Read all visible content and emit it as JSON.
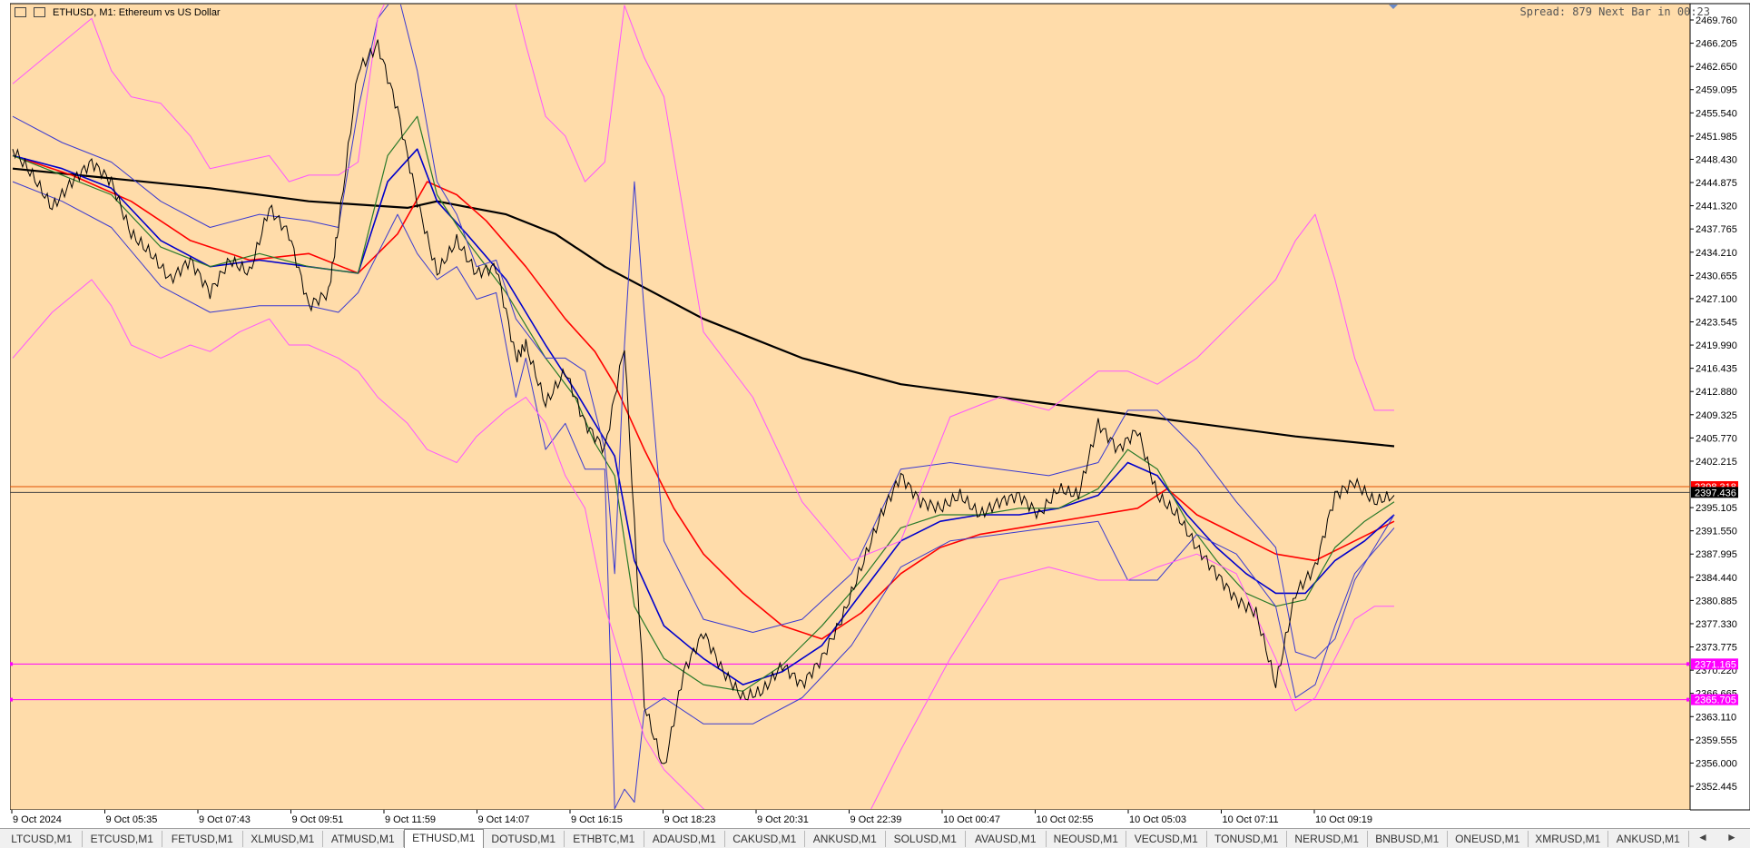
{
  "window": {
    "title": "ETHUSD, M1:  Ethereum vs US Dollar",
    "spread_text": "Spread: 879 Next Bar in 00:23"
  },
  "tabs": [
    {
      "label": "LTCUSD,M1",
      "active": false
    },
    {
      "label": "ETCUSD,M1",
      "active": false
    },
    {
      "label": "FETUSD,M1",
      "active": false
    },
    {
      "label": "XLMUSD,M1",
      "active": false
    },
    {
      "label": "ATMUSD,M1",
      "active": false
    },
    {
      "label": "ETHUSD,M1",
      "active": true
    },
    {
      "label": "DOTUSD,M1",
      "active": false
    },
    {
      "label": "ETHBTC,M1",
      "active": false
    },
    {
      "label": "ADAUSD,M1",
      "active": false
    },
    {
      "label": "CAKUSD,M1",
      "active": false
    },
    {
      "label": "ANKUSD,M1",
      "active": false
    },
    {
      "label": "SOLUSD,M1",
      "active": false
    },
    {
      "label": "AVAUSD,M1",
      "active": false
    },
    {
      "label": "NEOUSD,M1",
      "active": false
    },
    {
      "label": "VECUSD,M1",
      "active": false
    },
    {
      "label": "TONUSD,M1",
      "active": false
    },
    {
      "label": "NERUSD,M1",
      "active": false
    },
    {
      "label": "BNBUSD,M1",
      "active": false
    },
    {
      "label": "ONEUSD,M1",
      "active": false
    },
    {
      "label": "XMRUSD,M1",
      "active": false
    },
    {
      "label": "ANKUSD,M1",
      "active": false
    }
  ],
  "tab_arrows": {
    "left": "◄",
    "right": "►"
  },
  "chart_data": {
    "type": "line",
    "symbol": "ETHUSD",
    "timeframe": "M1",
    "background_color": "#ffdcaa",
    "ylim": [
      2350.0,
      2470.0
    ],
    "y_ticks": [
      "2469.760",
      "2466.205",
      "2462.650",
      "2459.095",
      "2455.540",
      "2451.985",
      "2448.430",
      "2444.875",
      "2441.320",
      "2437.765",
      "2434.210",
      "2430.655",
      "2427.100",
      "2423.545",
      "2419.990",
      "2416.435",
      "2412.880",
      "2409.325",
      "2405.770",
      "2402.215",
      "2395.105",
      "2391.550",
      "2387.995",
      "2384.440",
      "2380.885",
      "2377.330",
      "2373.775",
      "2370.220",
      "2366.665",
      "2363.110",
      "2359.555",
      "2356.000",
      "2352.445"
    ],
    "x_ticks": [
      "9 Oct 2024",
      "9 Oct 05:35",
      "9 Oct 07:43",
      "9 Oct 09:51",
      "9 Oct 11:59",
      "9 Oct 14:07",
      "9 Oct 16:15",
      "9 Oct 18:23",
      "9 Oct 20:31",
      "9 Oct 22:39",
      "10 Oct 00:47",
      "10 Oct 02:55",
      "10 Oct 05:03",
      "10 Oct 07:11",
      "10 Oct 09:19"
    ],
    "price_labels": [
      {
        "value": "2398.318",
        "price": 2398.318,
        "bg": "#ff0000",
        "fg": "#ffffff"
      },
      {
        "value": "2397.436",
        "price": 2397.436,
        "bg": "#000000",
        "fg": "#ffffff"
      },
      {
        "value": "2371.165",
        "price": 2371.165,
        "bg": "#ff00ff",
        "fg": "#ffffff"
      },
      {
        "value": "2365.705",
        "price": 2365.705,
        "bg": "#ff00ff",
        "fg": "#ffffff"
      }
    ],
    "hlines": [
      {
        "price": 2398.318,
        "color": "#e05000"
      },
      {
        "price": 2397.436,
        "color": "#444444"
      },
      {
        "price": 2371.165,
        "color": "#ff00ff"
      },
      {
        "price": 2365.705,
        "color": "#ff00ff"
      }
    ],
    "price_series": {
      "name": "",
      "color": "#000000",
      "x": [
        0,
        4,
        8,
        12,
        16,
        20,
        24,
        28,
        32,
        36,
        40,
        44,
        48,
        52,
        56,
        60,
        64,
        66,
        70,
        74,
        78,
        82,
        86,
        90,
        94,
        98,
        102,
        104,
        108,
        112,
        116,
        120,
        124,
        128,
        132,
        136,
        140,
        144,
        148,
        152,
        156,
        160,
        164,
        168,
        172,
        176,
        180,
        184,
        188,
        192,
        196,
        200,
        204,
        208,
        212,
        216,
        220,
        224,
        228,
        232,
        236,
        240,
        244,
        248,
        252,
        256,
        260,
        264,
        268,
        272,
        276,
        280
      ],
      "values": [
        2450,
        2446,
        2441,
        2445,
        2448,
        2445,
        2437,
        2434,
        2430,
        2433,
        2428,
        2433,
        2431,
        2441,
        2437,
        2426,
        2428,
        2438,
        2462,
        2466,
        2456,
        2442,
        2431,
        2436,
        2431,
        2432,
        2418,
        2420,
        2411,
        2416,
        2408,
        2404,
        2420,
        2365,
        2355,
        2370,
        2376,
        2370,
        2366,
        2367,
        2371,
        2368,
        2372,
        2378,
        2386,
        2394,
        2400,
        2396,
        2395,
        2397,
        2394,
        2396,
        2397,
        2394,
        2398,
        2397,
        2408,
        2404,
        2407,
        2397,
        2394,
        2389,
        2385,
        2381,
        2379,
        2368,
        2382,
        2386,
        2397,
        2399,
        2396,
        2397
      ]
    },
    "indicators": [
      {
        "name": "",
        "color": "#000000",
        "width": 2.2,
        "x": [
          0,
          20,
          40,
          60,
          80,
          86,
          100,
          110,
          120,
          140,
          160,
          180,
          200,
          220,
          240,
          260,
          280
        ],
        "values": [
          2447,
          2445.5,
          2444,
          2442,
          2441,
          2442,
          2440,
          2437,
          2432,
          2424,
          2418,
          2414,
          2412,
          2410,
          2408,
          2406,
          2404.5
        ]
      },
      {
        "name": "",
        "color": "#ff0000",
        "width": 1.6,
        "x": [
          0,
          12,
          24,
          36,
          48,
          60,
          70,
          78,
          84,
          90,
          96,
          104,
          112,
          118,
          122,
          128,
          134,
          140,
          148,
          156,
          164,
          172,
          180,
          188,
          196,
          204,
          212,
          220,
          228,
          234,
          240,
          248,
          256,
          264,
          272,
          280
        ],
        "values": [
          2449,
          2446,
          2442,
          2436,
          2433,
          2434,
          2431,
          2437,
          2445,
          2443,
          2439,
          2432,
          2424,
          2419,
          2414,
          2404,
          2395,
          2388,
          2382,
          2377,
          2375,
          2379,
          2385,
          2389,
          2391,
          2392,
          2393,
          2394,
          2395,
          2398,
          2394,
          2391,
          2388,
          2387,
          2390,
          2393
        ]
      },
      {
        "name": "",
        "color": "#0000cc",
        "width": 1.6,
        "x": [
          0,
          10,
          20,
          30,
          40,
          50,
          60,
          70,
          76,
          82,
          86,
          92,
          100,
          108,
          114,
          118,
          122,
          126,
          132,
          140,
          148,
          156,
          164,
          172,
          180,
          188,
          196,
          204,
          212,
          220,
          226,
          232,
          238,
          244,
          250,
          256,
          262,
          268,
          274,
          280
        ],
        "values": [
          2449,
          2447,
          2444,
          2436,
          2432,
          2433,
          2432,
          2431,
          2445,
          2450,
          2442,
          2437,
          2430,
          2420,
          2413,
          2408,
          2403,
          2387,
          2377,
          2372,
          2368,
          2370,
          2374,
          2382,
          2390,
          2393,
          2394,
          2394,
          2395,
          2397,
          2402,
          2400,
          2394,
          2389,
          2385,
          2382,
          2382,
          2387,
          2390,
          2394
        ]
      },
      {
        "name": "",
        "color": "#2a7a2a",
        "width": 1.2,
        "x": [
          0,
          10,
          20,
          30,
          40,
          50,
          60,
          70,
          76,
          82,
          86,
          92,
          100,
          108,
          114,
          118,
          122,
          126,
          132,
          140,
          148,
          156,
          164,
          172,
          180,
          188,
          196,
          204,
          212,
          220,
          226,
          232,
          238,
          244,
          250,
          256,
          262,
          268,
          274,
          280
        ],
        "values": [
          2449,
          2446,
          2443,
          2435,
          2432,
          2434,
          2432,
          2431,
          2449,
          2455,
          2443,
          2436,
          2428,
          2418,
          2412,
          2405,
          2400,
          2380,
          2372,
          2368,
          2367,
          2371,
          2377,
          2384,
          2392,
          2394,
          2394,
          2395,
          2395,
          2398,
          2404,
          2401,
          2393,
          2387,
          2382,
          2380,
          2381,
          2389,
          2393,
          2396
        ]
      },
      {
        "name": "",
        "color": "#3a3ad0",
        "width": 1.0,
        "x": [
          0,
          10,
          20,
          30,
          40,
          50,
          60,
          66,
          70,
          74,
          78,
          82,
          86,
          90,
          94,
          98,
          102,
          104,
          108,
          112,
          116,
          120,
          122,
          124,
          126,
          128,
          132,
          140,
          150,
          160,
          170,
          180,
          190,
          200,
          210,
          220,
          226,
          232,
          240,
          248,
          256,
          260,
          264,
          268,
          272,
          280
        ],
        "values": [
          2455,
          2451,
          2448,
          2442,
          2438,
          2440,
          2439,
          2438,
          2456,
          2470,
          2474,
          2462,
          2445,
          2440,
          2432,
          2433,
          2424,
          2422,
          2418,
          2418,
          2416,
          2404,
          2385,
          2420,
          2445,
          2425,
          2390,
          2378,
          2376,
          2378,
          2385,
          2401,
          2402,
          2401,
          2400,
          2402,
          2410,
          2410,
          2404,
          2396,
          2389,
          2373,
          2372,
          2375,
          2384,
          2394
        ]
      },
      {
        "name": "",
        "color": "#3a3ad0",
        "width": 1.0,
        "x": [
          0,
          10,
          20,
          30,
          40,
          50,
          60,
          66,
          70,
          74,
          78,
          82,
          86,
          90,
          94,
          98,
          102,
          104,
          108,
          112,
          116,
          120,
          122,
          124,
          126,
          128,
          132,
          140,
          150,
          160,
          170,
          180,
          190,
          200,
          210,
          220,
          226,
          232,
          240,
          248,
          256,
          260,
          264,
          268,
          272,
          280
        ],
        "values": [
          2445,
          2442,
          2438,
          2429,
          2425,
          2426,
          2426,
          2425,
          2428,
          2434,
          2440,
          2434,
          2430,
          2432,
          2427,
          2428,
          2412,
          2418,
          2404,
          2408,
          2401,
          2401,
          2349,
          2352,
          2350,
          2364,
          2366,
          2362,
          2362,
          2366,
          2374,
          2386,
          2390,
          2391,
          2392,
          2393,
          2384,
          2384,
          2391,
          2388,
          2380,
          2366,
          2368,
          2377,
          2385,
          2392
        ]
      },
      {
        "name": "",
        "color": "#ff55ff",
        "width": 1.0,
        "x": [
          0,
          8,
          16,
          20,
          24,
          30,
          36,
          40,
          46,
          52,
          56,
          60,
          66,
          70,
          74,
          80,
          84,
          90,
          94,
          100,
          104,
          108,
          112,
          116,
          120,
          124,
          128,
          132,
          140,
          150,
          160,
          170,
          180,
          190,
          200,
          210,
          220,
          226,
          232,
          240,
          248,
          256,
          260,
          264,
          268,
          272,
          276,
          280
        ],
        "values": [
          2460,
          2465,
          2470,
          2462,
          2458,
          2457,
          2452,
          2447,
          2448,
          2449,
          2445,
          2446,
          2446,
          2448,
          2470,
          2480,
          2490,
          2492,
          2486,
          2478,
          2466,
          2455,
          2452,
          2445,
          2448,
          2472,
          2464,
          2458,
          2422,
          2412,
          2396,
          2387,
          2390,
          2409,
          2412,
          2410,
          2416,
          2416,
          2414,
          2418,
          2424,
          2430,
          2436,
          2440,
          2430,
          2418,
          2410,
          2410
        ]
      },
      {
        "name": "",
        "color": "#ff55ff",
        "width": 1.0,
        "x": [
          0,
          8,
          16,
          20,
          24,
          30,
          36,
          40,
          46,
          52,
          56,
          60,
          66,
          70,
          74,
          80,
          84,
          90,
          94,
          100,
          104,
          108,
          112,
          116,
          120,
          124,
          128,
          132,
          140,
          150,
          160,
          170,
          180,
          190,
          200,
          210,
          220,
          226,
          232,
          240,
          248,
          256,
          260,
          264,
          268,
          272,
          276,
          280
        ],
        "values": [
          2418,
          2425,
          2430,
          2426,
          2420,
          2418,
          2420,
          2419,
          2422,
          2424,
          2420,
          2420,
          2418,
          2416,
          2412,
          2408,
          2404,
          2402,
          2406,
          2410,
          2412,
          2408,
          2400,
          2395,
          2380,
          2370,
          2360,
          2355,
          2349,
          2345,
          2340,
          2343,
          2358,
          2372,
          2384,
          2386,
          2384,
          2384,
          2386,
          2388,
          2385,
          2372,
          2364,
          2366,
          2372,
          2378,
          2380,
          2380
        ]
      }
    ]
  }
}
